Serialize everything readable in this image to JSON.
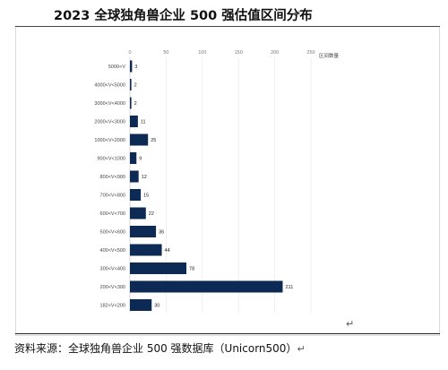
{
  "title": "2023 全球独角兽企业 500 强估值区间分布",
  "return_mark": "↵",
  "source": "资料来源：全球独角兽企业 500 强数据库（Unicorn500）",
  "colors": {
    "bar": "#0d2a55",
    "grid": "#e6e6e6",
    "axis": "#bdbdbd"
  },
  "chart_data": {
    "type": "bar",
    "orientation": "horizontal",
    "categories": [
      "5000<V",
      "4000<V<5000",
      "3000<V<4000",
      "2000<V<3000",
      "1000<V<2000",
      "900<V<1000",
      "800<V<900",
      "700<V<800",
      "600<V<700",
      "500<V<600",
      "400<V<500",
      "300<V<400",
      "200<V<300",
      "182<V<200"
    ],
    "values": [
      3,
      2,
      2,
      11,
      25,
      9,
      12,
      15,
      22,
      36,
      44,
      78,
      211,
      30
    ],
    "xlabel": "区间数量",
    "xlim": [
      0,
      250
    ],
    "xticks": [
      0,
      50,
      100,
      150,
      200,
      250
    ],
    "axis_position": "top",
    "grid": true
  }
}
